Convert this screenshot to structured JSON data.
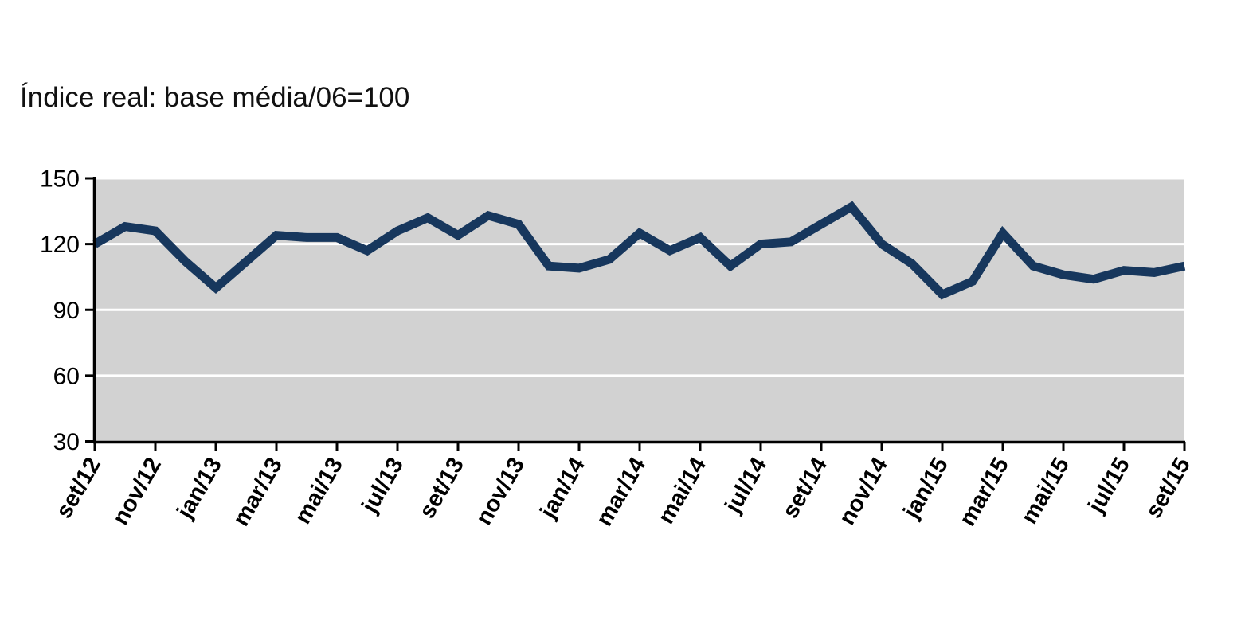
{
  "chart_data": {
    "type": "line",
    "title": "Índice real: base média/06=100",
    "xlabel": "",
    "ylabel": "",
    "x": [
      "set/12",
      "out/12",
      "nov/12",
      "dez/12",
      "jan/13",
      "fev/13",
      "mar/13",
      "abr/13",
      "mai/13",
      "jun/13",
      "jul/13",
      "ago/13",
      "set/13",
      "out/13",
      "nov/13",
      "dez/13",
      "jan/14",
      "fev/14",
      "mar/14",
      "abr/14",
      "mai/14",
      "jun/14",
      "jul/14",
      "ago/14",
      "set/14",
      "out/14",
      "nov/14",
      "dez/14",
      "jan/15",
      "fev/15",
      "mar/15",
      "abr/15",
      "mai/15",
      "jun/15",
      "jul/15",
      "ago/15",
      "set/15"
    ],
    "series": [
      {
        "name": "Índice real",
        "values": [
          120,
          128,
          126,
          112,
          100,
          112,
          124,
          123,
          123,
          117,
          126,
          132,
          124,
          133,
          129,
          110,
          109,
          113,
          125,
          117,
          123,
          110,
          120,
          121,
          129,
          137,
          120,
          111,
          97,
          103,
          125,
          110,
          106,
          104,
          108,
          107,
          110
        ]
      }
    ],
    "x_tick_labels": [
      "set/12",
      "nov/12",
      "jan/13",
      "mar/13",
      "mai/13",
      "jul/13",
      "set/13",
      "nov/13",
      "jan/14",
      "mar/14",
      "mai/14",
      "jul/14",
      "set/14",
      "nov/14",
      "jan/15",
      "mar/15",
      "mai/15",
      "jul/15",
      "set/15"
    ],
    "y_ticks": [
      30,
      60,
      90,
      120,
      150
    ],
    "y_gridlines": [
      60,
      90,
      120,
      150
    ],
    "ylim": [
      30,
      150
    ],
    "legend_position": "none",
    "grid": true,
    "colors": {
      "line": "#17375d",
      "plot_background": "#d2d2d2",
      "gridline": "#ffffff",
      "axis": "#000000",
      "tick_text": "#000000"
    }
  }
}
